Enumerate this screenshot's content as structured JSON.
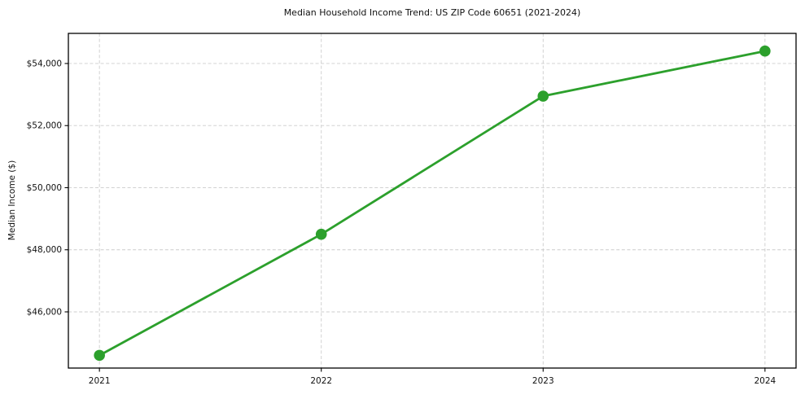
{
  "chart_data": {
    "type": "line",
    "title": "Median Household Income Trend: US ZIP Code 60651 (2021-2024)",
    "xlabel": "",
    "ylabel": "Median Income ($)",
    "x": [
      2021,
      2022,
      2023,
      2024
    ],
    "x_tick_labels": [
      "2021",
      "2022",
      "2023",
      "2024"
    ],
    "values": [
      44600,
      48500,
      52950,
      54400
    ],
    "y_ticks": [
      46000,
      48000,
      50000,
      52000,
      54000
    ],
    "y_tick_labels": [
      "$46,000",
      "$48,000",
      "$50,000",
      "$52,000",
      "$54,000"
    ],
    "xlim": [
      2020.86,
      2024.14
    ],
    "ylim": [
      44190,
      54970
    ],
    "grid": true,
    "grid_style": "dashed",
    "legend_position": "none",
    "line_color": "#2ca02c",
    "marker": "circle"
  }
}
